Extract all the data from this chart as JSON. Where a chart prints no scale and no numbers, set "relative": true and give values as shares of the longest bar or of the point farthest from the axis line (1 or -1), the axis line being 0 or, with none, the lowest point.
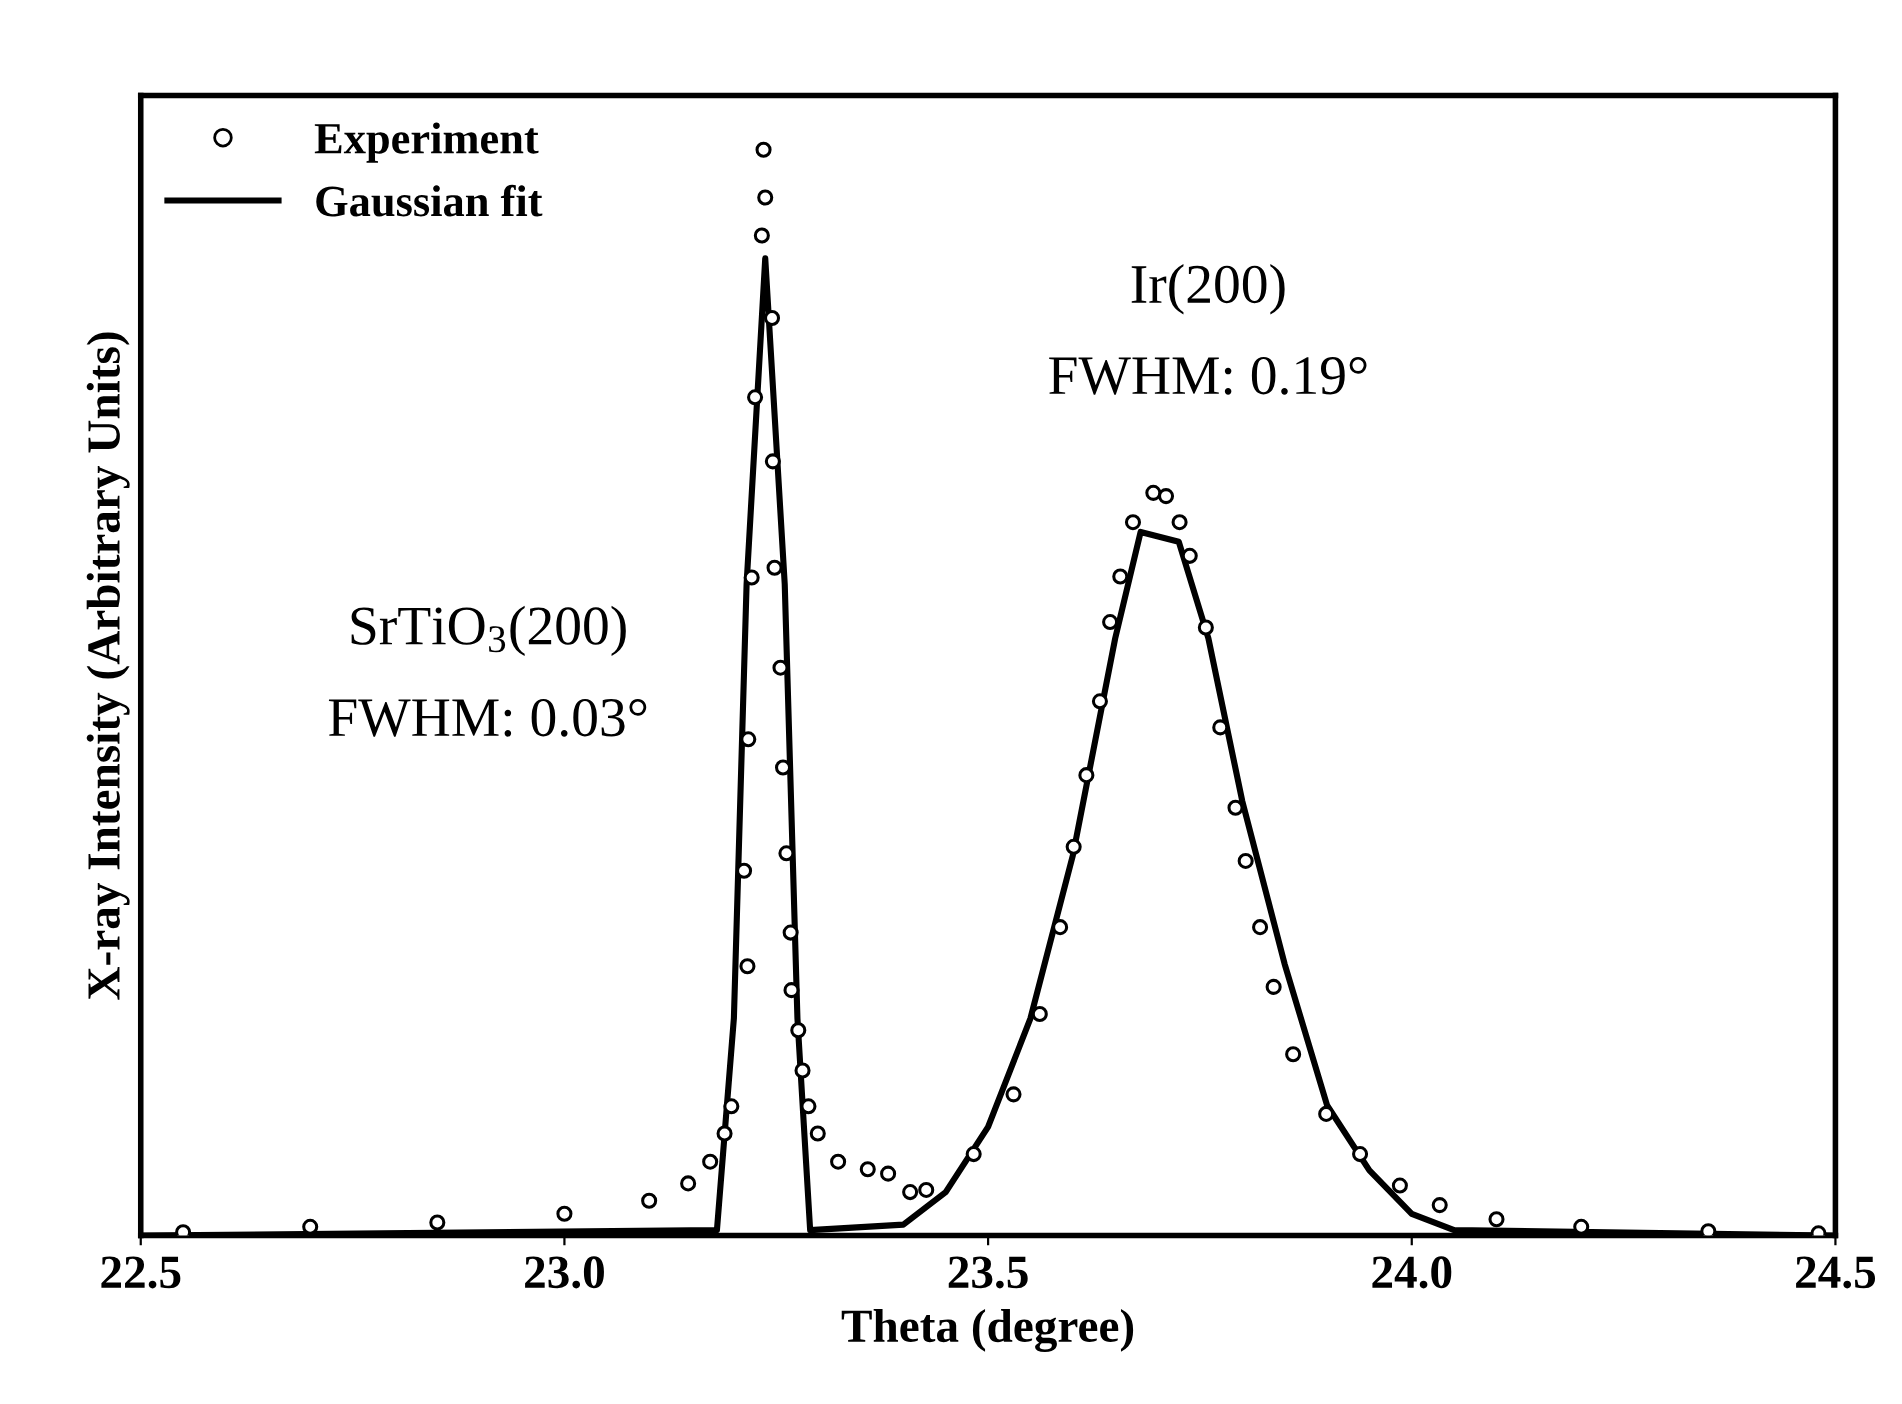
{
  "chart_data": {
    "type": "line",
    "xlabel": "Theta (degree)",
    "ylabel": "X-ray Intensity (Arbitrary Units)",
    "relative": true,
    "xlim": [
      22.5,
      24.5
    ],
    "xticks": [
      22.5,
      {
        "value": 23,
        "label": "23.0"
      },
      23.5,
      {
        "value": 24,
        "label": "24.0"
      },
      24.5
    ],
    "legend": "top left",
    "grid": false,
    "annotations": [
      "Ir(200)",
      "FWHM: 0.19°",
      "SrTiO$_{3}$(200)",
      "FWHM: 0.03°"
    ],
    "series": [
      {
        "name": "Experiment",
        "type": "scatter",
        "marker": "circle",
        "color": "#000000",
        "x": [
          22.55,
          22.7,
          22.85,
          23.0,
          23.1,
          23.146,
          23.172,
          23.189,
          23.197,
          23.212,
          23.216,
          23.217,
          23.221,
          23.225,
          23.233,
          23.235,
          23.237,
          23.245,
          23.246,
          23.248,
          23.255,
          23.258,
          23.262,
          23.267,
          23.268,
          23.276,
          23.281,
          23.288,
          23.299,
          23.323,
          23.358,
          23.382,
          23.408,
          23.427,
          23.483,
          23.53,
          23.561,
          23.585,
          23.601,
          23.616,
          23.632,
          23.644,
          23.656,
          23.671,
          23.695,
          23.71,
          23.726,
          23.738,
          23.757,
          23.774,
          23.792,
          23.804,
          23.821,
          23.837,
          23.86,
          23.899,
          23.939,
          23.986,
          24.033,
          24.1,
          24.2,
          24.35,
          24.48
        ],
        "values": [
          0.003,
          0.008,
          0.012,
          0.02,
          0.032,
          0.048,
          0.068,
          0.094,
          0.119,
          0.336,
          0.248,
          0.457,
          0.606,
          0.772,
          0.921,
          1,
          0.956,
          0.845,
          0.713,
          0.615,
          0.523,
          0.431,
          0.352,
          0.279,
          0.226,
          0.189,
          0.152,
          0.119,
          0.094,
          0.068,
          0.061,
          0.057,
          0.04,
          0.042,
          0.075,
          0.13,
          0.204,
          0.284,
          0.358,
          0.424,
          0.492,
          0.565,
          0.607,
          0.657,
          0.684,
          0.681,
          0.657,
          0.626,
          0.56,
          0.468,
          0.394,
          0.345,
          0.284,
          0.229,
          0.167,
          0.112,
          0.075,
          0.046,
          0.028,
          0.015,
          0.008,
          0.004,
          0.002
        ]
      },
      {
        "name": "Gaussian fit",
        "line_style": "solid",
        "marker": "none",
        "color": "#000000",
        "x": [
          22.5,
          23.18,
          23.2,
          23.215,
          23.237,
          23.26,
          23.275,
          23.29,
          23.4,
          23.45,
          23.5,
          23.55,
          23.6,
          23.65,
          23.68,
          23.725,
          23.76,
          23.8,
          23.85,
          23.9,
          23.95,
          24.0,
          24.05,
          24.5
        ],
        "values": [
          0.0,
          0.005,
          0.2,
          0.6,
          0.9,
          0.6,
          0.2,
          0.005,
          0.01,
          0.04,
          0.1,
          0.2,
          0.35,
          0.55,
          0.648,
          0.639,
          0.55,
          0.4,
          0.25,
          0.12,
          0.06,
          0.02,
          0.005,
          0.0
        ]
      }
    ]
  }
}
